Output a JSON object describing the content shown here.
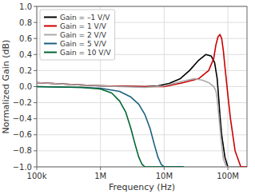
{
  "chart_data": {
    "type": "line",
    "xlabel": "Frequency (Hz)",
    "ylabel": "Normalized Gain (dB)",
    "log": "x",
    "xlim": [
      100000,
      200000000
    ],
    "ylim": [
      -1,
      1
    ],
    "xticks": [
      {
        "value": 100000,
        "label": "100k"
      },
      {
        "value": 1000000,
        "label": "1M"
      },
      {
        "value": 10000000,
        "label": "10M"
      },
      {
        "value": 100000000,
        "label": "100M"
      }
    ],
    "yticks": [
      {
        "value": -1,
        "label": "−1.0"
      },
      {
        "value": -0.8,
        "label": "−0.8"
      },
      {
        "value": -0.6,
        "label": "−0.6"
      },
      {
        "value": -0.4,
        "label": "−0.4"
      },
      {
        "value": -0.2,
        "label": "−0.2"
      },
      {
        "value": 0,
        "label": "0.0"
      },
      0.2,
      0.4,
      0.6,
      0.8,
      {
        "value": 1,
        "label": "1.0"
      }
    ],
    "grid": true,
    "legend": "upper-left",
    "series": [
      {
        "name": "Gain = –1 V/V",
        "color": "#000000",
        "x": [
          100000,
          300000,
          700000,
          1000000,
          2000000,
          5000000,
          8000000,
          12000000,
          18000000,
          25000000,
          35000000,
          45000000,
          55000000,
          62000000,
          68000000,
          72000000,
          75000000,
          80000000,
          90000000,
          100000000,
          120000000,
          150000000
        ],
        "values": [
          0.05,
          0.03,
          0.015,
          0.01,
          0.005,
          0.0,
          0.01,
          0.04,
          0.1,
          0.2,
          0.33,
          0.4,
          0.38,
          0.3,
          0.1,
          -0.15,
          -0.35,
          -0.6,
          -0.88,
          -1.0,
          -1.0,
          -1.0
        ]
      },
      {
        "name": "Gain = 1 V/V",
        "color": "#cc0000",
        "x": [
          100000,
          500000,
          1000000,
          2000000,
          5000000,
          10000000,
          20000000,
          35000000,
          50000000,
          60000000,
          65000000,
          70000000,
          75000000,
          80000000,
          85000000,
          90000000,
          100000000,
          110000000,
          130000000,
          160000000,
          200000000
        ],
        "values": [
          0.05,
          0.02,
          0.01,
          0.005,
          0.0,
          0.0,
          0.05,
          0.1,
          0.2,
          0.35,
          0.52,
          0.62,
          0.65,
          0.6,
          0.45,
          0.25,
          -0.1,
          -0.4,
          -0.8,
          -1.0,
          -1.0
        ]
      },
      {
        "name": "Gain = 2 V/V",
        "color": "#aaaaaa",
        "x": [
          100000,
          500000,
          1000000,
          2000000,
          5000000,
          10000000,
          20000000,
          30000000,
          40000000,
          50000000,
          60000000,
          65000000,
          68000000,
          72000000,
          78000000,
          85000000,
          95000000,
          110000000,
          150000000
        ],
        "values": [
          0.05,
          0.02,
          0.01,
          0.0,
          -0.01,
          0.01,
          0.07,
          0.1,
          0.08,
          0.05,
          0.0,
          -0.05,
          -0.15,
          -0.35,
          -0.65,
          -0.9,
          -1.0,
          -1.0,
          -1.0
        ]
      },
      {
        "name": "Gain = 5 V/V",
        "color": "#1a6080",
        "x": [
          100000,
          500000,
          1000000,
          2000000,
          3000000,
          4000000,
          5000000,
          6000000,
          7000000,
          8000000,
          9000000,
          10000000,
          15000000,
          20000000
        ],
        "values": [
          0.0,
          -0.01,
          -0.02,
          -0.06,
          -0.13,
          -0.22,
          -0.35,
          -0.52,
          -0.72,
          -0.88,
          -0.97,
          -1.0,
          -1.0,
          -1.0
        ]
      },
      {
        "name": "Gain = 10 V/V",
        "color": "#006633",
        "x": [
          100000,
          500000,
          1000000,
          1500000,
          2000000,
          2500000,
          3000000,
          3500000,
          4000000,
          4500000,
          5000000,
          6000000,
          8000000,
          10000000,
          20000000
        ],
        "values": [
          0.0,
          -0.01,
          -0.03,
          -0.08,
          -0.18,
          -0.32,
          -0.52,
          -0.72,
          -0.88,
          -0.97,
          -1.0,
          -1.0,
          -1.0,
          -1.0,
          -1.0
        ]
      }
    ]
  }
}
